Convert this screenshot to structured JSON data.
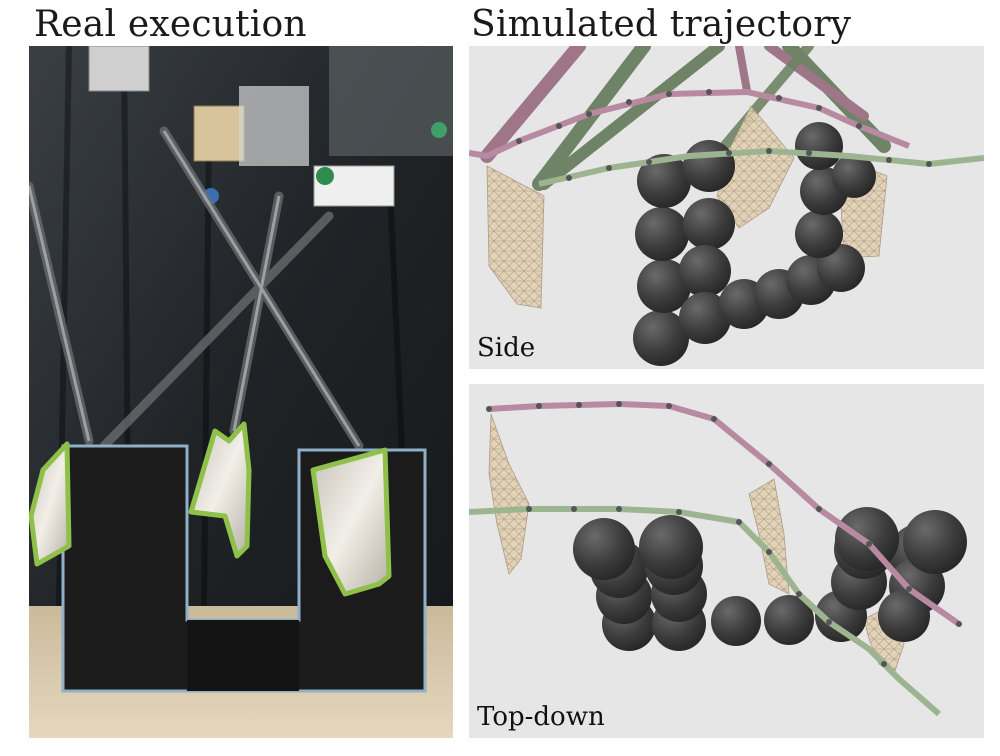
{
  "headings": {
    "real": "Real execution",
    "simulated": "Simulated trajectory"
  },
  "views": {
    "side": "Side",
    "top_down": "Top-down"
  },
  "colors": {
    "panel_bg": "#e6e6e6",
    "sphere": "#3c3c3c",
    "cloth": "#e2d2b4",
    "trajectory_pink": "#b78aa2",
    "trajectory_green": "#9cb590",
    "robot_arm_pink": "#9e7688",
    "robot_arm_green": "#6f8366",
    "cloth_outline_real": "#8fc04a",
    "obstacle_outline_real": "#8fb0c8"
  },
  "icons": [
    "robot-arm-icon",
    "cloth-icon",
    "sphere-obstacle-icon"
  ]
}
